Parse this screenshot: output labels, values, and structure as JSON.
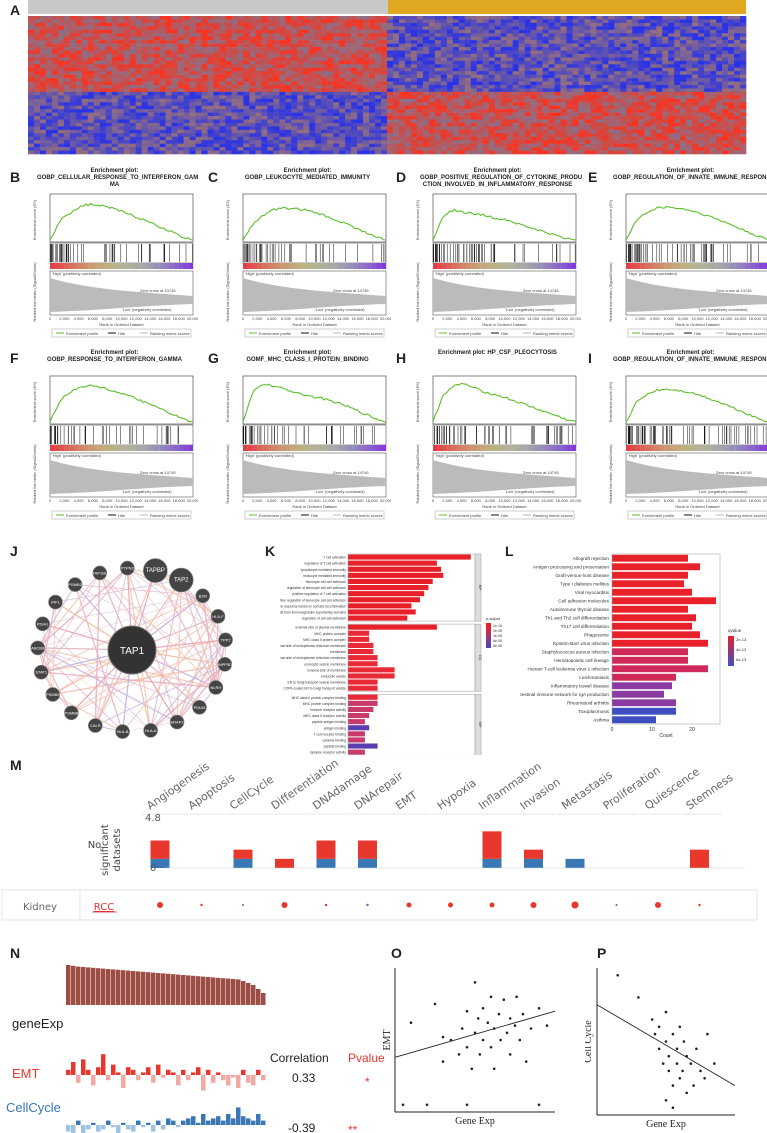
{
  "panels": {
    "A": "A",
    "B": "B",
    "C": "C",
    "D": "D",
    "E": "E",
    "F": "F",
    "G": "G",
    "H": "H",
    "I": "I",
    "J": "J",
    "K": "K",
    "L": "L",
    "M": "M",
    "N": "N",
    "O": "O",
    "P": "P"
  },
  "gsea_common": {
    "y_label": "Enrichment score (ES)",
    "metric_label": "Ranked list metric (Signal2Noise)",
    "x_label": "Rank in Ordered Dataset",
    "pos_label": "'High' (positively correlated)",
    "neg_label": "'Low' (negatively correlated)",
    "zero_cross": "Zero cross at 14745",
    "legend": [
      "Enrichment profile",
      "Hits",
      "Ranking metric scores"
    ],
    "x_ticks": [
      "0",
      "2,000",
      "4,000",
      "6,000",
      "8,000",
      "10,000",
      "12,000",
      "14,000",
      "16,000",
      "18,000",
      "20,000"
    ]
  },
  "gsea": [
    {
      "id": "B",
      "title": "Enrichment plot:\nGOBP_CELLULAR_RESPONSE_TO_INTERFERON_GAM\nMA",
      "es": [
        0,
        0.35,
        0.5,
        0.62,
        0.65,
        0.62,
        0.58,
        0.52,
        0.45,
        0.38,
        0.3,
        0.22,
        0.14,
        0.05,
        0
      ]
    },
    {
      "id": "C",
      "title": "Enrichment plot:\nGOBP_LEUKOCYTE_MEDIATED_IMMUNITY",
      "es": [
        0,
        0.3,
        0.45,
        0.55,
        0.58,
        0.57,
        0.55,
        0.5,
        0.44,
        0.37,
        0.3,
        0.22,
        0.14,
        0.06,
        0
      ]
    },
    {
      "id": "D",
      "title": "Enrichment plot:\nGOBP_POSITIVE_REGULATION_OF_CYTOKINE_PRODU\nCTION_INVOLVED_IN_INFLAMMATORY_RESPONSE",
      "es": [
        0,
        0.45,
        0.55,
        0.5,
        0.48,
        0.45,
        0.4,
        0.38,
        0.32,
        0.25,
        0.2,
        0.14,
        0.08,
        0.03,
        0
      ]
    },
    {
      "id": "E",
      "title": "Enrichment plot:\nGOBP_REGULATION_OF_INNATE_IMMUNE_RESPONSE",
      "es": [
        0,
        0.35,
        0.5,
        0.58,
        0.6,
        0.58,
        0.55,
        0.5,
        0.44,
        0.37,
        0.3,
        0.22,
        0.14,
        0.06,
        0
      ]
    },
    {
      "id": "F",
      "title": "Enrichment plot:\nGOBP_RESPONSE_TO_INTERFERON_GAMMA",
      "es": [
        0,
        0.4,
        0.55,
        0.65,
        0.66,
        0.63,
        0.58,
        0.52,
        0.45,
        0.38,
        0.3,
        0.22,
        0.14,
        0.05,
        0
      ]
    },
    {
      "id": "G",
      "title": "Enrichment plot:\nGOMF_MHC_CLASS_I_PROTEIN_BINDING",
      "es": [
        0,
        0.55,
        0.7,
        0.65,
        0.6,
        0.55,
        0.5,
        0.45,
        0.42,
        0.36,
        0.3,
        0.22,
        0.14,
        0.06,
        0
      ]
    },
    {
      "id": "H",
      "title": "Enrichment plot: HP_CSF_PLEOCYTOSIS",
      "es": [
        0,
        0.5,
        0.65,
        0.7,
        0.62,
        0.55,
        0.5,
        0.45,
        0.38,
        0.32,
        0.25,
        0.18,
        0.12,
        0.05,
        0
      ]
    },
    {
      "id": "I",
      "title": "Enrichment plot:\nGOBP_REGULATION_OF_INNATE_IMMUNE_RESPONSE",
      "es": [
        0,
        0.35,
        0.5,
        0.58,
        0.6,
        0.58,
        0.55,
        0.5,
        0.44,
        0.37,
        0.3,
        0.22,
        0.14,
        0.06,
        0
      ]
    }
  ],
  "network": {
    "center": "TAP1",
    "nodes": [
      "TAPBP",
      "TAP2",
      "B2M",
      "HLA-F",
      "TPP2",
      "INPP5D",
      "NLRH",
      "PDIA3",
      "ERAP2",
      "HLA-A",
      "HLA-B",
      "CALR",
      "PSMB8",
      "PSMB9",
      "STAT1",
      "ABCB9",
      "PDIA1",
      "IRF1",
      "PSMB2",
      "TAP1BL",
      "PTPN2"
    ]
  },
  "chart_data": [
    {
      "type": "bar",
      "panel": "K",
      "orientation": "horizontal",
      "categories": [
        "T cell activation",
        "regulation of T cell activation",
        "lymphocyte mediated immunity",
        "leukocyte mediated immunity",
        "leukocyte cell-cell adhesion",
        "regulation of leukocyte cell-cell adhesion",
        "positive regulation of T cell activation",
        "positive regulation of leukocyte cell-cell adhesion",
        "adaptive immune response based on somatic recombination",
        "immune receptors built from immunoglobulin superfamily domains",
        "regulation of cell-cell adhesion",
        "external side of plasma membrane",
        "MHC protein complex",
        "MHC class II protein complex",
        "integral component of lumenal side of endoplasmic reticulum membrane",
        "membrane",
        "lumenal side of endoplasmic reticulum membrane",
        "endocytic vesicle membrane",
        "lumenal side of membrane",
        "endocytic vesicle",
        "ER to Golgi transport vesicle membrane",
        "COPII-coated ER to Golgi transport vesicle",
        "MHC class II protein complex binding",
        "MHC protein complex binding",
        "immune receptor activity",
        "MHC class II receptor activity",
        "peptide antigen binding",
        "antigen binding",
        "T cell receptor binding",
        "cytokine binding",
        "peptide binding",
        "cytokine receptor activity"
      ],
      "values": [
        58,
        42,
        44,
        45,
        40,
        38,
        36,
        34,
        30,
        32,
        28,
        42,
        10,
        10,
        12,
        12,
        14,
        14,
        22,
        22,
        14,
        14,
        14,
        14,
        12,
        10,
        8,
        10,
        8,
        8,
        14,
        8
      ],
      "groups": [
        "BP",
        "BP",
        "BP",
        "BP",
        "BP",
        "BP",
        "BP",
        "BP",
        "BP",
        "BP",
        "BP",
        "CC",
        "CC",
        "CC",
        "CC",
        "CC",
        "CC",
        "CC",
        "CC",
        "CC",
        "CC",
        "CC",
        "MF",
        "MF",
        "MF",
        "MF",
        "MF",
        "MF",
        "MF",
        "MF",
        "MF",
        "MF"
      ],
      "xlabel": "Count",
      "xlim": [
        0,
        60
      ],
      "x_ticks": [
        "0",
        "20",
        "40",
        "60"
      ],
      "legend_title": "p.adjust",
      "legend_values": [
        "1e-16",
        "2e-08",
        "4e-08",
        "6e-08",
        "8e-08"
      ],
      "facets": [
        "BP",
        "CC",
        "MF"
      ]
    },
    {
      "type": "bar",
      "panel": "L",
      "orientation": "horizontal",
      "categories": [
        "Allograft rejection",
        "Antigen processing and presentation",
        "Graft-versus-host disease",
        "Type I diabetes mellitus",
        "Viral myocarditis",
        "Cell adhesion molecules",
        "Autoimmune thyroid disease",
        "Th1 and Th2 cell differentiation",
        "Th17 cell differentiation",
        "Phagosome",
        "Epstein-Barr virus infection",
        "Staphylococcus aureus infection",
        "Hematopoietic cell lineage",
        "Human T-cell leukemia virus 1 infection",
        "Leishmaniasis",
        "Inflammatory bowel disease",
        "Intestinal immune network for IgA production",
        "Rheumatoid arthritis",
        "Toxoplasmosis",
        "Asthma"
      ],
      "values": [
        19,
        22,
        19,
        18,
        20,
        26,
        19,
        21,
        20,
        22,
        24,
        19,
        19,
        24,
        16,
        15,
        13,
        16,
        16,
        11
      ],
      "xlabel": "Count",
      "xlim": [
        0,
        27
      ],
      "x_ticks": [
        "0",
        "10",
        "20"
      ],
      "legend_title": "qvalue",
      "legend_values": [
        "2e-13",
        "4e-13",
        "6e-13"
      ]
    },
    {
      "type": "bar",
      "panel": "M",
      "categories": [
        "Angiogenesis",
        "Apoptosis",
        "CellCycle",
        "Differentiation",
        "DNAdamage",
        "DNArepair",
        "EMT",
        "Hypoxia",
        "Inflammation",
        "Invasion",
        "Metastasis",
        "Proliferation",
        "Quiescence",
        "Stemness"
      ],
      "series": [
        {
          "name": "positive",
          "color": "#e8372c",
          "values": [
            2,
            0,
            1,
            1,
            2,
            2,
            0,
            0,
            3,
            1,
            0,
            0,
            0,
            2
          ]
        },
        {
          "name": "negative",
          "color": "#3a78b5",
          "values": [
            1,
            0,
            1,
            0,
            1,
            1,
            0,
            0,
            1,
            1,
            1,
            0,
            0,
            0
          ]
        }
      ],
      "ylabel": "No. significant datasets",
      "ylim": [
        0,
        4.8
      ],
      "y_ticks": [
        "4.8",
        "0"
      ],
      "row_tissue": "Kidney",
      "row_cancer": "RCC",
      "dot_sizes": [
        3,
        1.2,
        1,
        3,
        1.2,
        1.2,
        2.5,
        2.5,
        2.5,
        3,
        3.5,
        1,
        3,
        1.2
      ],
      "dot_colors": [
        "#e8372c",
        "#e8372c",
        "#3a78b5",
        "#e8372c",
        "#e8372c",
        "#3a78b5",
        "#e8372c",
        "#e8372c",
        "#e8372c",
        "#e8372c",
        "#e8372c",
        "#3a78b5",
        "#e8372c",
        "#e8372c"
      ]
    },
    {
      "type": "scatter",
      "panel": "O",
      "xlabel": "Gene Exp",
      "ylabel": "EMT",
      "points": [
        [
          0.05,
          0.05
        ],
        [
          0.1,
          0.62
        ],
        [
          0.25,
          0.75
        ],
        [
          0.3,
          0.35
        ],
        [
          0.3,
          0.52
        ],
        [
          0.35,
          0.5
        ],
        [
          0.4,
          0.4
        ],
        [
          0.42,
          0.58
        ],
        [
          0.45,
          0.7
        ],
        [
          0.45,
          0.45
        ],
        [
          0.48,
          0.3
        ],
        [
          0.5,
          0.55
        ],
        [
          0.5,
          0.9
        ],
        [
          0.52,
          0.65
        ],
        [
          0.53,
          0.4
        ],
        [
          0.55,
          0.72
        ],
        [
          0.55,
          0.5
        ],
        [
          0.58,
          0.62
        ],
        [
          0.6,
          0.45
        ],
        [
          0.6,
          0.8
        ],
        [
          0.62,
          0.3
        ],
        [
          0.62,
          0.58
        ],
        [
          0.65,
          0.68
        ],
        [
          0.66,
          0.5
        ],
        [
          0.68,
          0.78
        ],
        [
          0.7,
          0.55
        ],
        [
          0.72,
          0.4
        ],
        [
          0.72,
          0.65
        ],
        [
          0.75,
          0.6
        ],
        [
          0.76,
          0.8
        ],
        [
          0.78,
          0.5
        ],
        [
          0.8,
          0.68
        ],
        [
          0.82,
          0.35
        ],
        [
          0.85,
          0.58
        ],
        [
          0.9,
          0.72
        ],
        [
          0.95,
          0.6
        ],
        [
          0.45,
          0.05
        ],
        [
          0.9,
          0.05
        ],
        [
          0.2,
          0.05
        ]
      ],
      "fit": [
        [
          0,
          0.38
        ],
        [
          1,
          0.7
        ]
      ]
    },
    {
      "type": "scatter",
      "panel": "P",
      "xlabel": "Gene Exp",
      "ylabel": "Cell Cycle",
      "points": [
        [
          0.15,
          0.95
        ],
        [
          0.3,
          0.8
        ],
        [
          0.4,
          0.65
        ],
        [
          0.42,
          0.55
        ],
        [
          0.45,
          0.6
        ],
        [
          0.45,
          0.45
        ],
        [
          0.48,
          0.35
        ],
        [
          0.5,
          0.5
        ],
        [
          0.5,
          0.7
        ],
        [
          0.52,
          0.4
        ],
        [
          0.52,
          0.3
        ],
        [
          0.55,
          0.55
        ],
        [
          0.55,
          0.2
        ],
        [
          0.58,
          0.35
        ],
        [
          0.58,
          0.45
        ],
        [
          0.6,
          0.6
        ],
        [
          0.6,
          0.25
        ],
        [
          0.62,
          0.3
        ],
        [
          0.63,
          0.5
        ],
        [
          0.65,
          0.15
        ],
        [
          0.65,
          0.4
        ],
        [
          0.68,
          0.35
        ],
        [
          0.7,
          0.2
        ],
        [
          0.72,
          0.45
        ],
        [
          0.75,
          0.3
        ],
        [
          0.78,
          0.25
        ],
        [
          0.8,
          0.55
        ],
        [
          0.85,
          0.35
        ],
        [
          0.5,
          0.1
        ],
        [
          0.55,
          0.05
        ]
      ],
      "fit": [
        [
          0,
          0.75
        ],
        [
          1,
          0.2
        ]
      ]
    },
    {
      "type": "bar",
      "panel": "N",
      "rows": [
        {
          "label": "geneExp",
          "color": "#9c4d44",
          "values": [
            1,
            0.98,
            0.96,
            0.95,
            0.94,
            0.93,
            0.92,
            0.91,
            0.9,
            0.89,
            0.88,
            0.87,
            0.86,
            0.85,
            0.84,
            0.83,
            0.82,
            0.81,
            0.8,
            0.79,
            0.78,
            0.77,
            0.76,
            0.75,
            0.74,
            0.73,
            0.72,
            0.71,
            0.7,
            0.69,
            0.68,
            0.67,
            0.66,
            0.65,
            0.64,
            0.6,
            0.55,
            0.5,
            0.4,
            0.3
          ]
        },
        {
          "label": "EMT",
          "color": "#e8372c",
          "light": "#f2a9a3",
          "values": [
            0.2,
            0.5,
            -0.3,
            0.6,
            0.2,
            -0.4,
            0.3,
            0.8,
            -0.2,
            0.4,
            0.1,
            -0.5,
            0.3,
            0.2,
            -0.2,
            0.1,
            0.3,
            -0.3,
            0.4,
            -0.1,
            0.2,
            0.1,
            -0.4,
            0.2,
            -0.2,
            0.1,
            0.3,
            -0.6,
            0.2,
            -0.3,
            0.1,
            -0.2,
            -0.4,
            -0.1,
            -0.5,
            0.2,
            -0.3,
            -0.4,
            0.2,
            -0.2
          ]
        },
        {
          "label": "CellCycle",
          "color": "#3a78b5",
          "light": "#9fc1e2",
          "values": [
            -0.3,
            -0.4,
            0.2,
            -0.5,
            -0.2,
            0.1,
            -0.3,
            -0.2,
            0.2,
            -0.1,
            -0.4,
            0.1,
            -0.2,
            -0.3,
            0.2,
            -0.1,
            0.1,
            -0.3,
            0.2,
            -0.2,
            0.3,
            0.2,
            -0.1,
            0.2,
            0.3,
            0.4,
            0.1,
            0.5,
            0.2,
            0.3,
            0.4,
            0.2,
            0.5,
            0.3,
            0.8,
            0.4,
            0.3,
            0.2,
            0.5,
            0.2
          ]
        }
      ],
      "col_corr": "Correlation",
      "col_p": "Pvalue",
      "correlations": [
        "0.33",
        "-0.39"
      ],
      "pvalues": [
        "*",
        "**"
      ]
    }
  ]
}
